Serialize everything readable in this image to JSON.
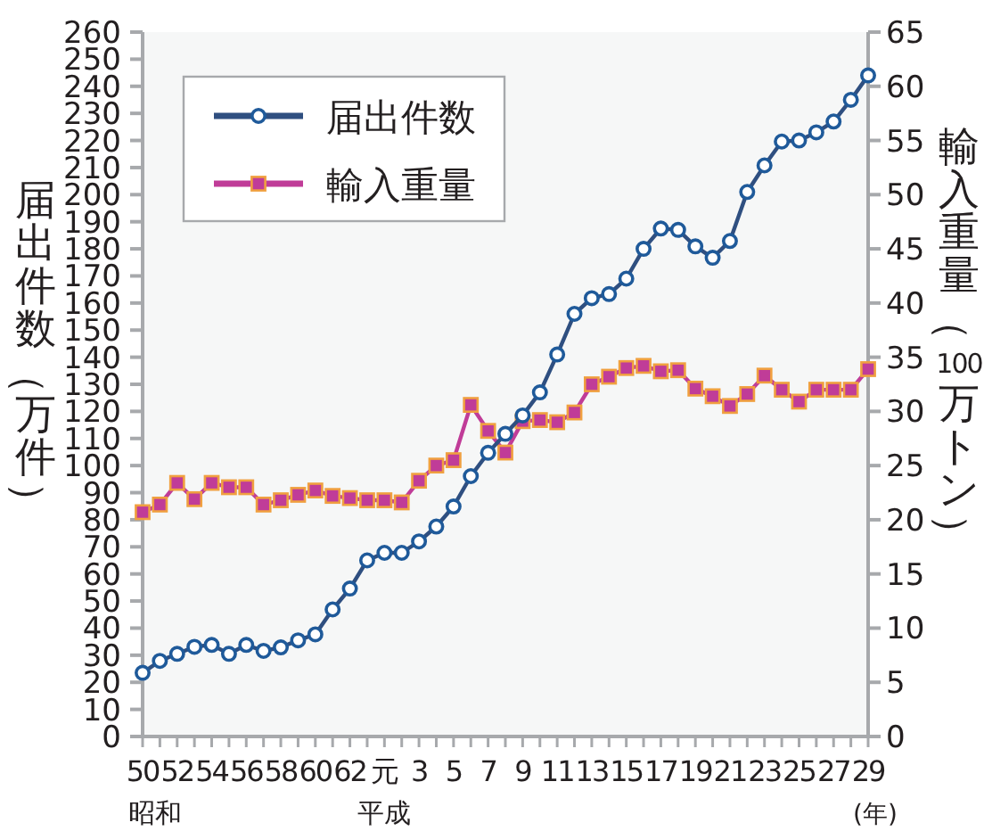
{
  "chart_data": {
    "type": "line",
    "xlabel": "(年)",
    "ylabel": "届出件数（万件）",
    "y2label": "輸入重量（100万トン）",
    "categories": [
      "50",
      null,
      "52",
      null,
      "54",
      null,
      "56",
      null,
      "58",
      null,
      "60",
      null,
      "62",
      null,
      "元",
      null,
      "3",
      null,
      "5",
      null,
      "7",
      null,
      "9",
      null,
      "11",
      null,
      "13",
      null,
      "15",
      null,
      "17",
      null,
      "19",
      null,
      "21",
      null,
      "23",
      null,
      "25",
      null,
      "27",
      null,
      "29"
    ],
    "series": [
      {
        "name": "届出件数",
        "color": "#2f4f80",
        "marker": "circle",
        "values": [
          23.5,
          27.9,
          30.5,
          33.1,
          33.8,
          30.5,
          33.8,
          31.6,
          32.9,
          35.5,
          37.7,
          46.9,
          54.6,
          65,
          67.8,
          67.8,
          72,
          77.5,
          84.9,
          96.1,
          104.7,
          111.7,
          118.5,
          127,
          141,
          156,
          161.8,
          163.3,
          169,
          180,
          187.5,
          187,
          180.9,
          176.7,
          182.9,
          201,
          210.8,
          219.6,
          220,
          223,
          227,
          235,
          244
        ]
      },
      {
        "name": "輸入重量",
        "color": "#c03c98",
        "marker": "square",
        "axis": "y2",
        "values": [
          20.7,
          21.4,
          23.4,
          21.9,
          23.4,
          23,
          23,
          21.4,
          21.8,
          22.3,
          22.7,
          22.2,
          22,
          21.8,
          21.8,
          21.6,
          23.6,
          25,
          25.5,
          30.6,
          28.2,
          26.2,
          29.1,
          29.2,
          29,
          29.9,
          32.5,
          33.2,
          34,
          34.2,
          33.7,
          33.8,
          32.1,
          31.4,
          30.5,
          31.6,
          33.3,
          32,
          30.9,
          32,
          32,
          32,
          33.9
        ]
      }
    ],
    "ylim": [
      0,
      260
    ],
    "yticks": [
      0,
      10,
      20,
      30,
      40,
      50,
      60,
      70,
      80,
      90,
      100,
      110,
      120,
      130,
      140,
      150,
      160,
      170,
      180,
      190,
      200,
      210,
      220,
      230,
      240,
      250,
      260
    ],
    "y2lim": [
      0,
      65
    ],
    "y2ticks": [
      0,
      5,
      10,
      15,
      20,
      25,
      30,
      35,
      40,
      45,
      50,
      55,
      60,
      65
    ],
    "legend": "top left",
    "annotations": [
      "昭和",
      "平成"
    ]
  }
}
